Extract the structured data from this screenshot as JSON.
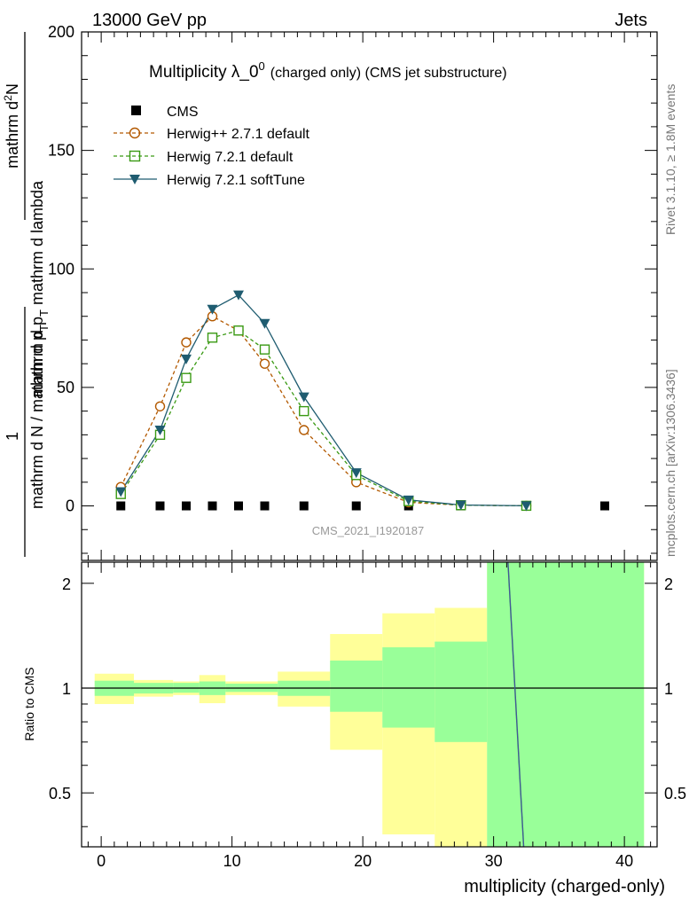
{
  "chart_data": {
    "type": "line",
    "header_left": "13000 GeV pp",
    "header_right": "Jets",
    "title": "Multiplicity λ_0",
    "title_sup": "0",
    "title_note": "(charged only) (CMS jet substructure)",
    "watermark": "CMS_2021_I1920187",
    "side_rivet": "Rivet 3.1.10, ≥ 1.8M events",
    "side_mcplots": "mcplots.cern.ch [arXiv:1306.3436]",
    "ylabel_numerator": "mathrm d²N",
    "ylabel_num_main": "mathrm d",
    "ylabel_num_sup": "2",
    "ylabel_num_tail": "N",
    "ylabel_denominator_pre": "mathrm d p",
    "ylabel_denominator_sub": "T",
    "ylabel_denominator_post": " mathrm d lambda",
    "ylabel_one": "1",
    "ylabel_left_pre": "mathrm d N / mathrm d p",
    "ylabel_left_sub": "T",
    "ratio_ylabel": "Ratio to CMS",
    "xlabel": "multiplicity (charged-only)",
    "xlim": [
      -1.5,
      42.5
    ],
    "ylim": [
      -23,
      200
    ],
    "ratio_ylim": [
      0.35,
      2.3
    ],
    "xticks": [
      0,
      10,
      20,
      30,
      40
    ],
    "yticks": [
      0,
      50,
      100,
      150,
      200
    ],
    "ratio_yticks": [
      0.5,
      1,
      2
    ],
    "ratio_ytick_labels": [
      "0.5",
      "1",
      "2"
    ],
    "legend_position": "top-left",
    "series": [
      {
        "name": "CMS",
        "style": "data",
        "color": "#000000",
        "x": [
          1.5,
          4.5,
          6.5,
          8.5,
          10.5,
          12.5,
          15.5,
          19.5,
          23.5,
          27.5,
          32.5,
          38.5
        ],
        "y": [
          0,
          0,
          0,
          0,
          0,
          0,
          0,
          0,
          0,
          0,
          0,
          0
        ]
      },
      {
        "name": "Herwig++ 2.7.1 default",
        "style": "circle-dashed",
        "color": "#b35900",
        "x": [
          1.5,
          4.5,
          6.5,
          8.5,
          10.5,
          12.5,
          15.5,
          19.5,
          23.5,
          27.5,
          32.5
        ],
        "y": [
          8,
          42,
          69,
          80,
          74,
          60,
          32,
          10,
          1.5,
          0.3,
          0.05
        ]
      },
      {
        "name": "Herwig 7.2.1 default",
        "style": "square-dashed",
        "color": "#3a9a14",
        "x": [
          1.5,
          4.5,
          6.5,
          8.5,
          10.5,
          12.5,
          15.5,
          19.5,
          23.5,
          27.5,
          32.5
        ],
        "y": [
          5,
          30,
          54,
          71,
          74,
          66,
          40,
          13,
          2,
          0.3,
          0.05
        ]
      },
      {
        "name": "Herwig 7.2.1 softTune",
        "style": "triangle-solid",
        "color": "#1f5c70",
        "x": [
          1.5,
          4.5,
          6.5,
          8.5,
          10.5,
          12.5,
          15.5,
          19.5,
          23.5,
          27.5,
          32.5
        ],
        "y": [
          6,
          32,
          62,
          83,
          89,
          77,
          46,
          14,
          2.5,
          0.4,
          0.05
        ]
      }
    ],
    "ratio_bands": [
      {
        "xlo": -0.5,
        "xhi": 2.5,
        "stat_lo": 0.95,
        "stat_hi": 1.05,
        "tot_lo": 0.9,
        "tot_hi": 1.1
      },
      {
        "xlo": 2.5,
        "xhi": 5.5,
        "stat_lo": 0.965,
        "stat_hi": 1.035,
        "tot_lo": 0.945,
        "tot_hi": 1.055
      },
      {
        "xlo": 5.5,
        "xhi": 7.5,
        "stat_lo": 0.97,
        "stat_hi": 1.035,
        "tot_lo": 0.955,
        "tot_hi": 1.045
      },
      {
        "xlo": 7.5,
        "xhi": 9.5,
        "stat_lo": 0.955,
        "stat_hi": 1.045,
        "tot_lo": 0.905,
        "tot_hi": 1.09
      },
      {
        "xlo": 9.5,
        "xhi": 13.5,
        "stat_lo": 0.975,
        "stat_hi": 1.03,
        "tot_lo": 0.955,
        "tot_hi": 1.045
      },
      {
        "xlo": 13.5,
        "xhi": 17.5,
        "stat_lo": 0.95,
        "stat_hi": 1.05,
        "tot_lo": 0.885,
        "tot_hi": 1.115
      },
      {
        "xlo": 17.5,
        "xhi": 21.5,
        "stat_lo": 0.855,
        "stat_hi": 1.2,
        "tot_lo": 0.665,
        "tot_hi": 1.43
      },
      {
        "xlo": 21.5,
        "xhi": 25.5,
        "stat_lo": 0.77,
        "stat_hi": 1.31,
        "tot_lo": 0.38,
        "tot_hi": 1.64
      },
      {
        "xlo": 25.5,
        "xhi": 29.5,
        "stat_lo": 0.7,
        "stat_hi": 1.36,
        "tot_lo": 0.35,
        "tot_hi": 1.7
      },
      {
        "xlo": 29.5,
        "xhi": 41.5,
        "stat_lo": 0.35,
        "stat_hi": 2.3,
        "tot_lo": 0.35,
        "tot_hi": 2.3
      }
    ],
    "ratio_reference": 1,
    "ratio_softtune_line": {
      "x": [
        31.1,
        32.3
      ],
      "y": [
        2.3,
        0.35
      ]
    },
    "colors": {
      "stat_band": "#99ff99",
      "total_band": "#ffff99"
    }
  }
}
